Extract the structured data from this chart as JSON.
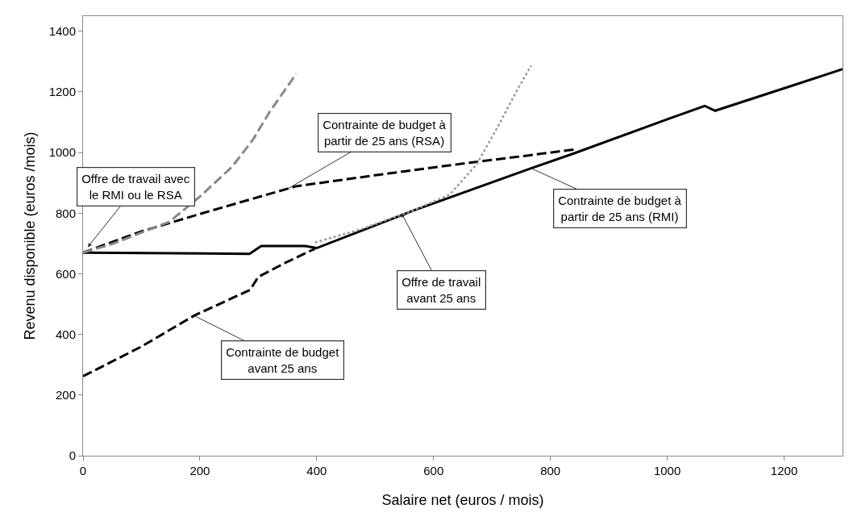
{
  "chart_data": {
    "type": "line",
    "xlabel": "Salaire net (euros / mois)",
    "ylabel": "Revenu disponible (euros /mois)",
    "xlim": [
      0,
      1300
    ],
    "xticks": [
      0,
      200,
      400,
      600,
      800,
      1000,
      1200
    ],
    "ylim": [
      0,
      1450
    ],
    "yticks": [
      0,
      200,
      400,
      600,
      800,
      1000,
      1200,
      1400
    ],
    "grid": false,
    "marker": "none",
    "series": [
      {
        "color": "#000000",
        "line_style": "solid",
        "x": [
          0,
          285,
          305,
          380,
          400,
          563,
          767,
          840,
          1000,
          1064,
          1082,
          1300
        ],
        "values": [
          670,
          666,
          692,
          692,
          685,
          807,
          948,
          997,
          1110,
          1154,
          1138,
          1275
        ]
      },
      {
        "color": "#000000",
        "line_style": "dashed",
        "x": [
          0,
          100,
          190,
          286,
          300,
          346,
          397
        ],
        "values": [
          262,
          360,
          462,
          547,
          590,
          636,
          683
        ]
      },
      {
        "color": "#000000",
        "line_style": "dashed",
        "x": [
          0,
          100,
          217,
          365,
          500,
          609,
          664,
          760,
          840
        ],
        "values": [
          670,
          740,
          807,
          889,
          925,
          953,
          967,
          990,
          1010
        ]
      },
      {
        "color": "#888888",
        "line_style": "dashed",
        "x": [
          0,
          51,
          148,
          199,
          255,
          291,
          319,
          365
        ],
        "values": [
          670,
          699,
          772,
          853,
          953,
          1043,
          1133,
          1260
        ]
      },
      {
        "color": "#999999",
        "line_style": "dotted",
        "x": [
          397,
          480,
          563,
          628,
          674,
          711,
          743,
          767
        ],
        "values": [
          703,
          750,
          807,
          862,
          962,
          1089,
          1206,
          1287
        ]
      }
    ],
    "annotations": [
      {
        "text": "Offre de travail avec\nle RMI ou le RSA",
        "x": 8,
        "y": 688
      },
      {
        "text": "Contrainte de budget à\npartir de 25 ans (RSA)",
        "x": 350,
        "y": 880
      },
      {
        "text": "Contrainte de budget à\npartir de 25 ans (RMI)",
        "x": 767,
        "y": 948
      },
      {
        "text": "Offre de travail\navant 25 ans",
        "x": 545,
        "y": 800
      },
      {
        "text": "Contrainte de budget\navant 25 ans",
        "x": 190,
        "y": 462
      }
    ]
  }
}
